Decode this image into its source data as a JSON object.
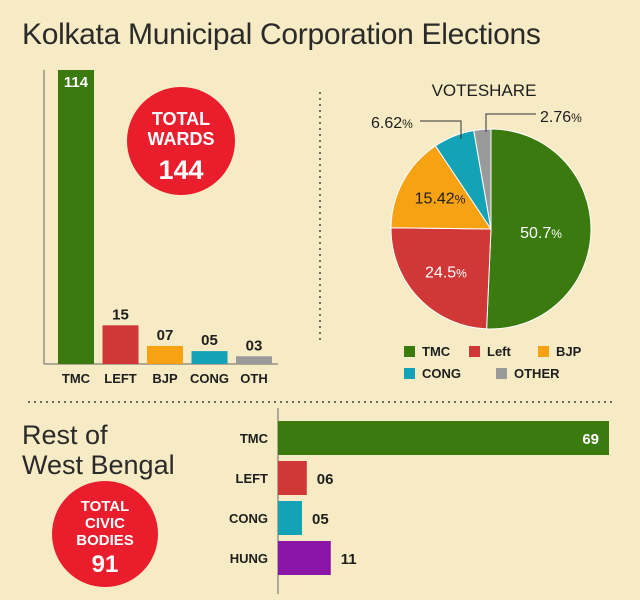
{
  "title": "Kolkata Municipal Corporation Elections",
  "colors": {
    "TMC": "#3a7a0e",
    "LEFT": "#d03838",
    "BJP": "#f6a213",
    "CONG": "#14a2b6",
    "OTHER": "#9a9a9a",
    "HUNG": "#8a15a8",
    "badge": "#ea1d2c"
  },
  "wards_badge": {
    "line1": "TOTAL",
    "line2": "WARDS",
    "value": "144"
  },
  "civic_badge": {
    "line1": "TOTAL",
    "line2": "CIVIC",
    "line3": "BODIES",
    "value": "91"
  },
  "rest_title": {
    "line1": "Rest of",
    "line2": "West Bengal"
  },
  "chart_data": [
    {
      "type": "bar",
      "categories": [
        "TMC",
        "LEFT",
        "BJP",
        "CONG",
        "OTH"
      ],
      "values": [
        114,
        15,
        7,
        5,
        3
      ],
      "value_labels": [
        "114",
        "15",
        "07",
        "05",
        "03"
      ],
      "ylim": [
        0,
        114
      ]
    },
    {
      "type": "pie",
      "title": "VOTESHARE",
      "categories": [
        "TMC",
        "Left",
        "BJP",
        "CONG",
        "OTHER"
      ],
      "values": [
        50.7,
        24.5,
        15.42,
        6.62,
        2.76
      ],
      "value_labels": [
        "50.7",
        "24.5",
        "15.42",
        "6.62",
        "2.76"
      ],
      "unit": "%",
      "legend": [
        "TMC",
        "Left",
        "BJP",
        "CONG",
        "OTHER"
      ]
    },
    {
      "type": "bar",
      "orientation": "horizontal",
      "categories": [
        "TMC",
        "LEFT",
        "CONG",
        "HUNG"
      ],
      "values": [
        69,
        6,
        5,
        11
      ],
      "value_labels": [
        "69",
        "06",
        "05",
        "11"
      ],
      "xlim": [
        0,
        69
      ]
    }
  ]
}
